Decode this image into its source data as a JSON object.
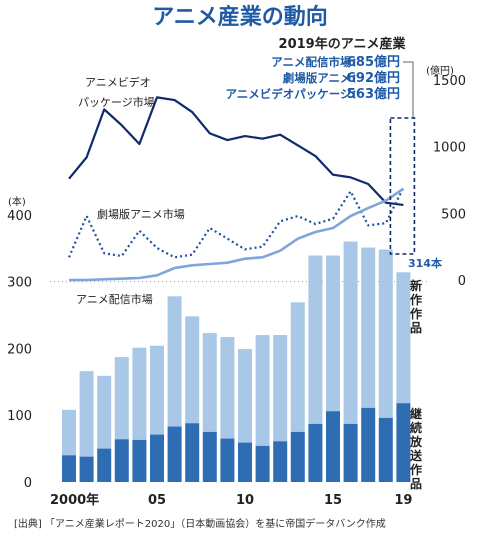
{
  "header": {
    "title": "アニメ産業の動向",
    "subtitle": "2019年のアニメ産業",
    "summary": [
      {
        "label": "アニメ配信市場：",
        "value": "685億円"
      },
      {
        "label": "劇場版アニメ：",
        "value": "692億円"
      },
      {
        "label": "アニメビデオパッケージ：",
        "value": "563億円"
      }
    ]
  },
  "source": "[出典] 「アニメ産業レポート2020」（日本動画協会）を基に帝国データバンク作成",
  "colors": {
    "title": "#1f5aa6",
    "bar_new": "#a9c8e8",
    "bar_cont": "#2e6db4",
    "line_video": "#0e2a6b",
    "line_theater": "#1e4f9c",
    "line_stream": "#7ea6dc",
    "text": "#222222"
  },
  "chart_data": {
    "type": "bar+line",
    "x_labels": {
      "2000": "2000年",
      "2005": "05",
      "2010": "10",
      "2015": "15",
      "2019": "19"
    },
    "years": [
      2000,
      2001,
      2002,
      2003,
      2004,
      2005,
      2006,
      2007,
      2008,
      2009,
      2010,
      2011,
      2012,
      2013,
      2014,
      2015,
      2016,
      2017,
      2018,
      2019
    ],
    "left_axis": {
      "unit": "(本)",
      "ticks": [
        0,
        100,
        200,
        300,
        400
      ],
      "range": [
        0,
        420
      ]
    },
    "right_axis": {
      "unit": "(億円)",
      "ticks": [
        0,
        500,
        1000,
        1500
      ],
      "range": [
        0,
        1550
      ]
    },
    "bars": {
      "series": [
        {
          "name": "継続放送作品",
          "values": [
            40,
            38,
            50,
            64,
            63,
            71,
            83,
            88,
            75,
            65,
            59,
            54,
            61,
            75,
            87,
            106,
            87,
            111,
            96,
            118
          ]
        },
        {
          "name": "新作作品",
          "values": [
            68,
            128,
            109,
            123,
            138,
            133,
            195,
            160,
            148,
            152,
            140,
            166,
            159,
            194,
            252,
            233,
            273,
            240,
            252,
            196
          ]
        }
      ],
      "total_2019_label": "314本"
    },
    "lines": [
      {
        "name": "アニメビデオパッケージ市場",
        "label_lines": [
          "アニメビデオ",
          "パッケージ市場"
        ],
        "style": "solid",
        "values": [
          760,
          920,
          1280,
          1160,
          1020,
          1370,
          1350,
          1260,
          1100,
          1050,
          1080,
          1060,
          1090,
          1010,
          930,
          790,
          770,
          720,
          580,
          563
        ]
      },
      {
        "name": "劇場版アニメ市場",
        "style": "dotted",
        "values": [
          170,
          480,
          200,
          180,
          370,
          240,
          170,
          190,
          390,
          310,
          230,
          250,
          440,
          480,
          420,
          460,
          665,
          410,
          426,
          692
        ]
      },
      {
        "name": "アニメ配信市場",
        "style": "solid",
        "values": [
          0,
          0,
          5,
          10,
          15,
          35,
          90,
          110,
          120,
          130,
          160,
          170,
          220,
          310,
          360,
          390,
          480,
          540,
          595,
          685
        ]
      }
    ]
  }
}
